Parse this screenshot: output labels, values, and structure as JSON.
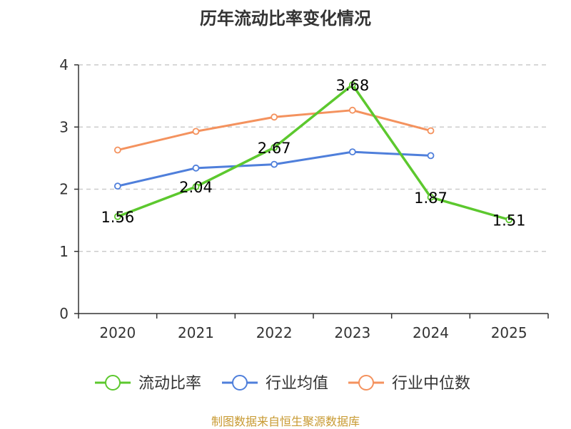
{
  "title": "历年流动比率变化情况",
  "source": "制图数据来自恒生聚源数据库",
  "chart_data": {
    "type": "line",
    "title": "历年流动比率变化情况",
    "categories": [
      "2020",
      "2021",
      "2022",
      "2023",
      "2024",
      "2025"
    ],
    "ylim": [
      0,
      4
    ],
    "yticks": [
      "0",
      "1",
      "2",
      "3",
      "4"
    ],
    "grid": true,
    "legend_position": "bottom",
    "series": [
      {
        "name": "流动比率",
        "color": "#5cc82e",
        "values": [
          1.56,
          2.04,
          2.67,
          3.68,
          1.87,
          1.51
        ],
        "labels": [
          "1.56",
          "2.04",
          "2.67",
          "3.68",
          "1.87",
          "1.51"
        ],
        "show_labels": true
      },
      {
        "name": "行业均值",
        "color": "#4f7fdb",
        "values": [
          2.05,
          2.34,
          2.4,
          2.6,
          2.54,
          null
        ],
        "show_labels": false
      },
      {
        "name": "行业中位数",
        "color": "#f4925e",
        "values": [
          2.63,
          2.93,
          3.16,
          3.27,
          2.94,
          null
        ],
        "show_labels": false
      }
    ]
  }
}
